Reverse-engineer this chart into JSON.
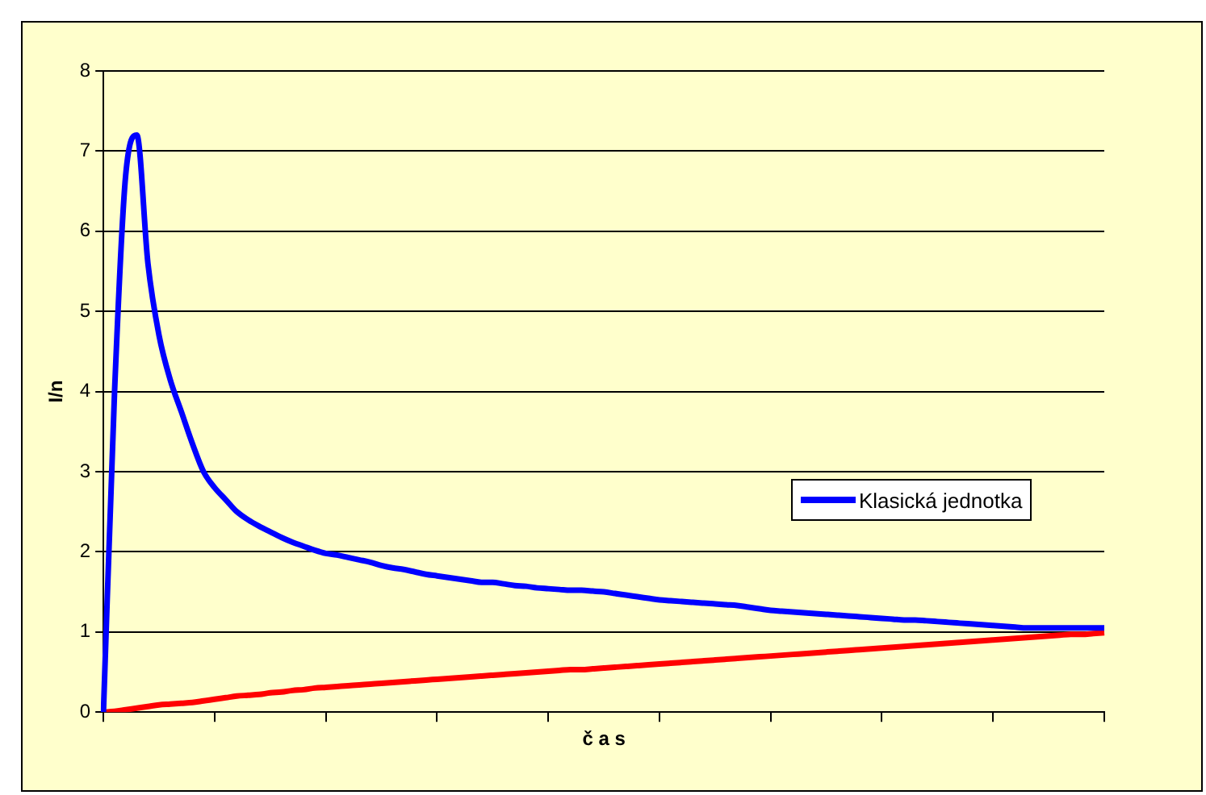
{
  "chart_data": {
    "type": "line",
    "xlabel": "č a s",
    "ylabel": "I/n",
    "categories": [
      null,
      null,
      null,
      null,
      null,
      null,
      null,
      null,
      null,
      null,
      null,
      null,
      null,
      null,
      null,
      null,
      null,
      null,
      null,
      null,
      null,
      null,
      null,
      null,
      null,
      null,
      null,
      null,
      null,
      null,
      null,
      null,
      null,
      null,
      null,
      null,
      null,
      null,
      null,
      null,
      null,
      null,
      null,
      null,
      null,
      null,
      null,
      null,
      null,
      null,
      null,
      null,
      null,
      null,
      null,
      null,
      null,
      null,
      null,
      null,
      null,
      null,
      null,
      null,
      null,
      null,
      null,
      null,
      null,
      null,
      null,
      null,
      null,
      null,
      null,
      null,
      null,
      null,
      null,
      null,
      null,
      null,
      null,
      null,
      null,
      null,
      null,
      null,
      null,
      null,
      null
    ],
    "series": [
      {
        "name": "Klasická jednotka",
        "color": "#0000ff",
        "values": [
          0,
          4.0,
          6.7,
          7.2,
          5.6,
          4.7,
          4.15,
          3.75,
          3.35,
          3.0,
          2.8,
          2.65,
          2.5,
          2.4,
          2.32,
          2.25,
          2.18,
          2.12,
          2.07,
          2.02,
          1.98,
          1.96,
          1.93,
          1.9,
          1.87,
          1.83,
          1.8,
          1.78,
          1.75,
          1.72,
          1.7,
          1.68,
          1.66,
          1.64,
          1.62,
          1.62,
          1.6,
          1.58,
          1.57,
          1.55,
          1.54,
          1.53,
          1.52,
          1.52,
          1.51,
          1.5,
          1.48,
          1.46,
          1.44,
          1.42,
          1.4,
          1.39,
          1.38,
          1.37,
          1.36,
          1.35,
          1.34,
          1.33,
          1.31,
          1.29,
          1.27,
          1.26,
          1.25,
          1.24,
          1.23,
          1.22,
          1.21,
          1.2,
          1.19,
          1.18,
          1.17,
          1.16,
          1.15,
          1.15,
          1.14,
          1.13,
          1.12,
          1.11,
          1.1,
          1.09,
          1.08,
          1.07,
          1.06,
          1.05,
          1.05,
          1.05,
          1.05,
          1.05,
          1.05,
          1.05,
          1.05
        ]
      },
      {
        "color": "#ff0000",
        "values": [
          0,
          0.01,
          0.03,
          0.05,
          0.07,
          0.09,
          0.1,
          0.11,
          0.12,
          0.14,
          0.16,
          0.18,
          0.2,
          0.21,
          0.22,
          0.24,
          0.25,
          0.27,
          0.28,
          0.3,
          0.31,
          0.32,
          0.33,
          0.34,
          0.35,
          0.36,
          0.37,
          0.38,
          0.39,
          0.4,
          0.41,
          0.42,
          0.43,
          0.44,
          0.45,
          0.46,
          0.47,
          0.48,
          0.49,
          0.5,
          0.51,
          0.52,
          0.53,
          0.53,
          0.54,
          0.55,
          0.56,
          0.57,
          0.58,
          0.59,
          0.6,
          0.61,
          0.62,
          0.63,
          0.64,
          0.65,
          0.66,
          0.67,
          0.68,
          0.69,
          0.7,
          0.71,
          0.72,
          0.73,
          0.74,
          0.75,
          0.76,
          0.77,
          0.78,
          0.79,
          0.8,
          0.81,
          0.82,
          0.83,
          0.84,
          0.85,
          0.86,
          0.87,
          0.88,
          0.89,
          0.9,
          0.91,
          0.92,
          0.93,
          0.94,
          0.95,
          0.96,
          0.97,
          0.97,
          0.98,
          0.99
        ]
      }
    ],
    "ylim": [
      0,
      8
    ],
    "yticks": [
      0,
      1,
      2,
      3,
      4,
      5,
      6,
      7,
      8
    ],
    "grid": "y",
    "legend": "right",
    "tick_labels": "y",
    "marker": "none",
    "line_style": "solid"
  }
}
